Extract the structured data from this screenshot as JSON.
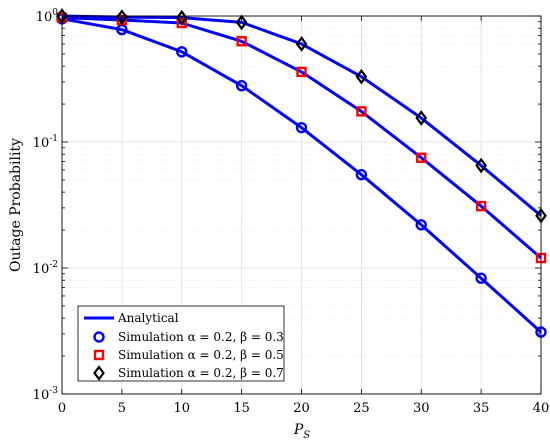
{
  "chart_data": {
    "type": "line",
    "xlabel": "P_S",
    "ylabel": "Outage Probability",
    "xlim": [
      0,
      40
    ],
    "ylim": [
      0.001,
      1
    ],
    "yscale": "log",
    "grid": true,
    "x_ticks": [
      "0",
      "5",
      "10",
      "15",
      "20",
      "25",
      "30",
      "35",
      "40"
    ],
    "y_ticks": [
      {
        "base": "10",
        "exp": "0"
      },
      {
        "base": "10",
        "exp": "-1"
      },
      {
        "base": "10",
        "exp": "-2"
      },
      {
        "base": "10",
        "exp": "-3"
      }
    ],
    "legend_position": "bottom-left",
    "x": [
      0,
      5,
      10,
      15,
      20,
      25,
      30,
      35,
      40
    ],
    "analytical": {
      "name": "Analytical",
      "color": "#0000ff"
    },
    "series": [
      {
        "name": "Simulation α = 0.2, β = 0.3",
        "marker": "circle",
        "color": "#0000ff",
        "values": [
          0.95,
          0.78,
          0.52,
          0.28,
          0.13,
          0.055,
          0.022,
          0.0083,
          0.0031
        ]
      },
      {
        "name": "Simulation α = 0.2, β = 0.5",
        "marker": "square",
        "color": "#ff0000",
        "values": [
          0.97,
          0.93,
          0.88,
          0.63,
          0.36,
          0.175,
          0.075,
          0.031,
          0.012
        ]
      },
      {
        "name": "Simulation α = 0.2, β = 0.7",
        "marker": "diamond",
        "color": "#000000",
        "values": [
          1.0,
          0.98,
          0.97,
          0.89,
          0.6,
          0.33,
          0.155,
          0.065,
          0.026
        ]
      }
    ]
  }
}
